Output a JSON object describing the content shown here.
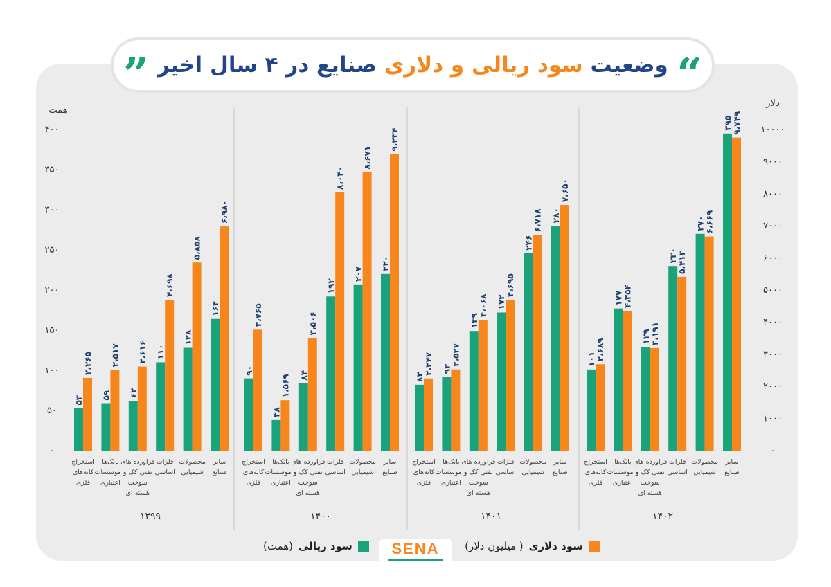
{
  "header": {
    "title_part1": "وضعیت",
    "title_part2": "سود ریالی و دلاری",
    "title_part3": "صنایع در ۴ سال اخیر",
    "quote_open": "”",
    "quote_close": "“"
  },
  "colors": {
    "rial": "#1aa37a",
    "dollar": "#f7871d",
    "title_dark": "#22458a",
    "panel": "#ececec"
  },
  "legend": {
    "rial_label": "سود ریالی",
    "rial_unit": "(همت)",
    "dollar_label": "سود دلاری",
    "dollar_unit": "( میلیون دلار)"
  },
  "logo": {
    "text": "SENA"
  },
  "chart_data": {
    "type": "bar",
    "left_axis": {
      "unit_label": "همت",
      "ylim": [
        0,
        400
      ],
      "ticks": [
        "۰",
        "۵۰",
        "۱۰۰",
        "۱۵۰",
        "۲۰۰",
        "۲۵۰",
        "۳۰۰",
        "۳۵۰",
        "۴۰۰"
      ]
    },
    "right_axis": {
      "unit_label": "دلار",
      "ylim": [
        0,
        10000
      ],
      "ticks": [
        "۰",
        "۱۰۰۰",
        "۲۰۰۰",
        "۳۰۰۰",
        "۴۰۰۰",
        "۵۰۰۰",
        "۶۰۰۰",
        "۷۰۰۰",
        "۸۰۰۰",
        "۹۰۰۰",
        "۱۰۰۰۰"
      ]
    },
    "categories": [
      [
        "استخراج",
        "کانه‌های",
        "فلزی"
      ],
      [
        "بانک‌ها",
        "و موسسات",
        "اعتباری"
      ],
      [
        "فراورده های",
        "نفتی کک و",
        "سوخت",
        "هسته ای"
      ],
      [
        "فلزات",
        "اساسی"
      ],
      [
        "محصولات",
        "شیمیایی"
      ],
      [
        "سایر",
        "صنایع"
      ]
    ],
    "groups": [
      {
        "year": "۱۳۹۹",
        "rial": [
          53,
          59,
          62,
          110,
          128,
          164
        ],
        "dollar": [
          2265,
          2517,
          2616,
          4698,
          5858,
          6980
        ],
        "rial_labels": [
          "۵۳",
          "۵۹",
          "۶۲",
          "۱۱۰",
          "۱۲۸",
          "۱۶۴"
        ],
        "dollar_labels": [
          "۲،۲۶۵",
          "۲،۵۱۷",
          "۲،۶۱۶",
          "۴،۶۹۸",
          "۵،۸۵۸",
          "۶،۹۸۰"
        ]
      },
      {
        "year": "۱۴۰۰",
        "rial": [
          90,
          38,
          84,
          192,
          207,
          220
        ],
        "dollar": [
          3765,
          1569,
          3506,
          8040,
          8671,
          9234
        ],
        "rial_labels": [
          "۹۰",
          "۳۸",
          "۸۴",
          "۱۹۲",
          "۲۰۷",
          "۲۲۰"
        ],
        "dollar_labels": [
          "۳،۷۶۵",
          "۱،۵۶۹",
          "۳،۵۰۶",
          "۸،۰۴۰",
          "۸،۶۷۱",
          "۹،۲۳۴"
        ]
      },
      {
        "year": "۱۴۰۱",
        "rial": [
          82,
          92,
          149,
          172,
          246,
          280
        ],
        "dollar": [
          2247,
          2527,
          4068,
          4695,
          6718,
          7650
        ],
        "rial_labels": [
          "۸۲",
          "۹۲",
          "۱۴۹",
          "۱۷۲",
          "۲۴۶",
          "۲۸۰"
        ],
        "dollar_labels": [
          "۲،۲۴۷",
          "۲،۵۲۷",
          "۴،۰۶۸",
          "۴،۶۹۵",
          "۶،۷۱۸",
          "۷،۶۵۰"
        ]
      },
      {
        "year": "۱۴۰۲",
        "rial": [
          101,
          177,
          129,
          230,
          270,
          395
        ],
        "dollar": [
          2689,
          4354,
          3191,
          5413,
          6669,
          9749
        ],
        "rial_labels": [
          "۱۰۱",
          "۱۷۷",
          "۱۲۹",
          "۲۳۰",
          "۲۷۰",
          "۳۹۵"
        ],
        "dollar_labels": [
          "۲،۶۸۹",
          "۴،۳۵۴",
          "۳،۱۹۱",
          "۵،۴۱۳",
          "۶،۶۶۹",
          "۹،۷۴۹"
        ]
      }
    ]
  }
}
